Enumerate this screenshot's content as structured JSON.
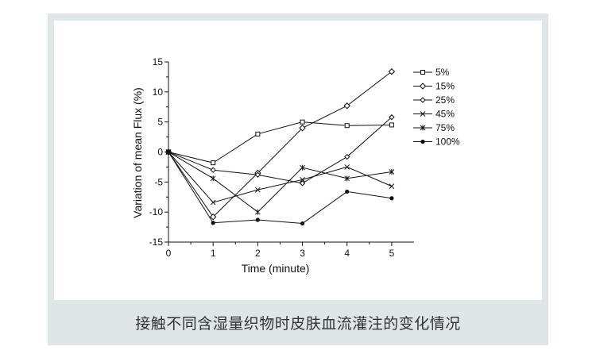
{
  "caption": "接触不同含湿量织物时皮肤血流灌注的变化情况",
  "colors": {
    "panel": "#dfe6e7",
    "ink": "#111111"
  },
  "chart_data": {
    "type": "line",
    "xlabel": "Time (minute)",
    "ylabel": "Variation of mean Flux (%)",
    "xlim": [
      0,
      5.5
    ],
    "ylim": [
      -15,
      15
    ],
    "x_ticks": [
      "0",
      "1",
      "2",
      "3",
      "4",
      "5"
    ],
    "y_ticks": [
      "15",
      "10",
      "5",
      "0",
      "-5",
      "-10",
      "-15"
    ],
    "x": [
      0,
      1,
      2,
      3,
      4,
      5
    ],
    "legend_position": "right",
    "series": [
      {
        "name": "5%",
        "marker": "square",
        "values": [
          0,
          -1.8,
          3,
          5,
          4.4,
          4.5
        ]
      },
      {
        "name": "15%",
        "marker": "diamond",
        "values": [
          0,
          -10.8,
          -3.5,
          4,
          7.7,
          13.4
        ]
      },
      {
        "name": "25%",
        "marker": "diamond-small",
        "values": [
          0,
          -3,
          -3.8,
          -5.2,
          -0.8,
          5.8
        ]
      },
      {
        "name": "45%",
        "marker": "x",
        "values": [
          0,
          -8.4,
          -6.3,
          -4.6,
          -2.5,
          -5.7
        ]
      },
      {
        "name": "75%",
        "marker": "star",
        "values": [
          0,
          -4.4,
          -10,
          -2.6,
          -4.4,
          -3.3
        ]
      },
      {
        "name": "100%",
        "marker": "dot",
        "values": [
          0,
          -11.8,
          -11.3,
          -11.9,
          -6.6,
          -7.7
        ]
      }
    ]
  }
}
